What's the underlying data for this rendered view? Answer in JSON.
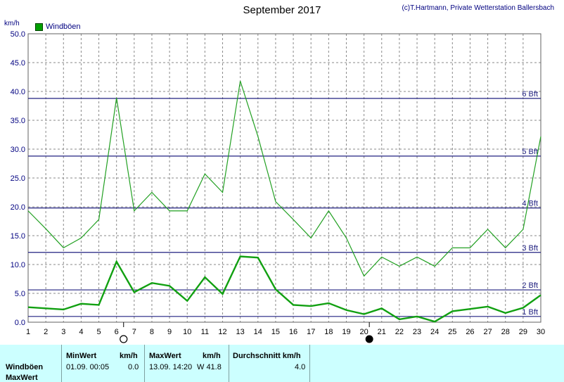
{
  "header": {
    "title": "September 2017",
    "copyright": "(c)T.Hartmann, Private Wetterstation Ballersbach",
    "unit": "km/h"
  },
  "legend": {
    "label": "Windböen",
    "color": "#00a000"
  },
  "colors": {
    "gust_line": "#22a022",
    "avg_line": "#11a011",
    "beaufort_line": "#202080",
    "grid": "#8a8a8a",
    "axis_text": "#000080"
  },
  "chart_data": {
    "type": "line",
    "title": "September 2017",
    "ylabel": "km/h",
    "x": [
      1,
      2,
      3,
      4,
      5,
      6,
      7,
      8,
      9,
      10,
      11,
      12,
      13,
      14,
      15,
      16,
      17,
      18,
      19,
      20,
      21,
      22,
      23,
      24,
      25,
      26,
      27,
      28,
      29,
      30
    ],
    "xlim": [
      1,
      30
    ],
    "ylim": [
      0,
      50
    ],
    "y_ticks": [
      "0.0",
      "5.0",
      "10.0",
      "15.0",
      "20.0",
      "25.0",
      "30.0",
      "35.0",
      "40.0",
      "45.0",
      "50.0"
    ],
    "grid": true,
    "legend_position": "top-left",
    "series": [
      {
        "name": "Windböen",
        "values": [
          19.3,
          16.2,
          12.9,
          14.6,
          17.8,
          38.9,
          19.3,
          22.5,
          19.3,
          19.3,
          25.7,
          22.5,
          41.8,
          32.2,
          20.9,
          17.8,
          14.6,
          19.3,
          14.6,
          8.0,
          11.3,
          9.7,
          11.3,
          9.7,
          12.9,
          12.9,
          16.1,
          12.9,
          16.1,
          32.2
        ]
      },
      {
        "values": [
          2.6,
          2.4,
          2.2,
          3.2,
          3.0,
          10.5,
          5.2,
          6.8,
          6.3,
          3.7,
          7.8,
          4.9,
          11.4,
          11.2,
          5.7,
          3.0,
          2.8,
          3.3,
          2.1,
          1.4,
          2.4,
          0.5,
          1.0,
          0.1,
          1.9,
          2.3,
          2.7,
          1.6,
          2.5,
          4.7
        ]
      }
    ],
    "beaufort": [
      {
        "label": "1 Bft",
        "value": 1
      },
      {
        "label": "2 Bft",
        "value": 5.6
      },
      {
        "label": "3 Bft",
        "value": 12.1
      },
      {
        "label": "4 Bft",
        "value": 19.8
      },
      {
        "label": "5 Bft",
        "value": 28.8
      },
      {
        "label": "6 Bft",
        "value": 38.8
      }
    ],
    "moon_phases": [
      {
        "day": 6.4,
        "phase": "full"
      },
      {
        "day": 20.3,
        "phase": "new"
      }
    ]
  },
  "summary": {
    "row_labels": [
      "Windböen",
      "MaxWert"
    ],
    "min": {
      "header": "MinWert",
      "unit": "km/h",
      "datetime": "01.09.  00:05",
      "value": "0.0"
    },
    "max": {
      "header": "MaxWert",
      "unit": "km/h",
      "datetime": "13.09.  14:20",
      "value": "W 41.8"
    },
    "avg": {
      "header": "Durchschnitt km/h",
      "value": "4.0"
    }
  }
}
